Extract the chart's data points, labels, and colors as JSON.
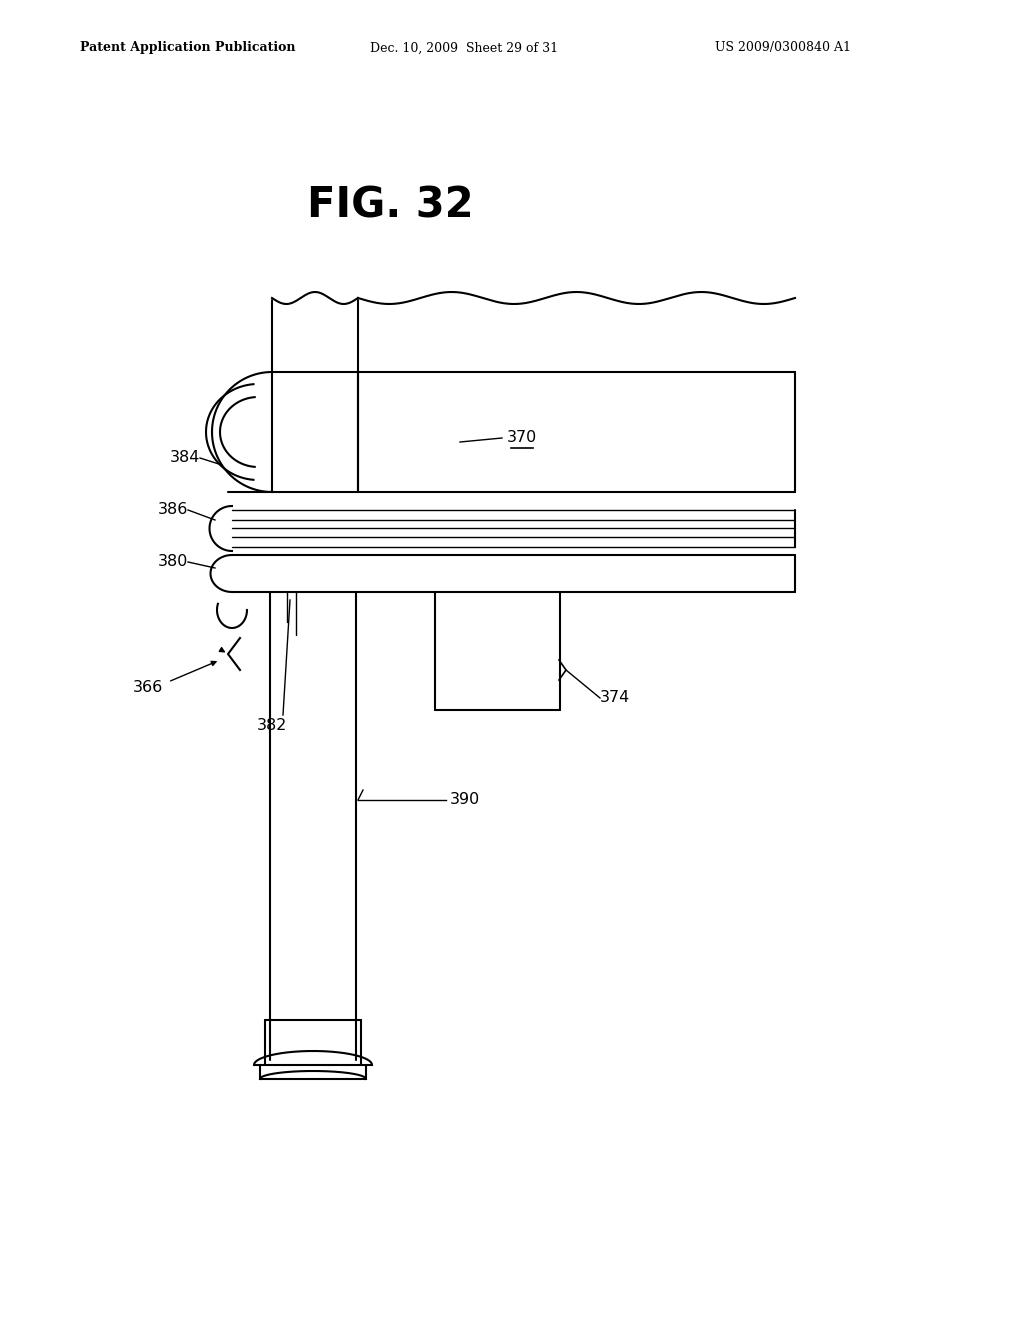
{
  "title": "FIG. 32",
  "header_left": "Patent Application Publication",
  "header_center": "Dec. 10, 2009  Sheet 29 of 31",
  "header_right": "US 2009/0300840 A1",
  "bg_color": "#ffffff",
  "line_color": "#000000",
  "figsize": [
    10.24,
    13.2
  ],
  "dpi": 100
}
